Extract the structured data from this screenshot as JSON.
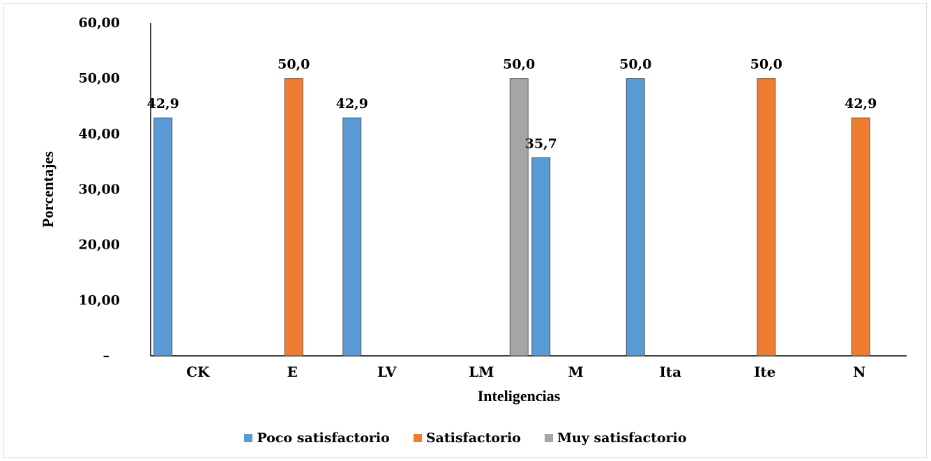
{
  "chart_data": {
    "type": "bar",
    "title": "",
    "xlabel": "Inteligencias",
    "ylabel": "Porcentajes",
    "ylim": [
      0,
      60
    ],
    "yticks": [
      "–",
      "10,00",
      "20,00",
      "30,00",
      "40,00",
      "50,00",
      "60,00"
    ],
    "ytick_values": [
      0,
      10,
      20,
      30,
      40,
      50,
      60
    ],
    "grid": false,
    "legend_position": "bottom",
    "categories": [
      "CK",
      "E",
      "LV",
      "LM",
      "M",
      "Ita",
      "Ite",
      "N"
    ],
    "series": [
      {
        "name": "Poco satisfactorio",
        "color": "#5b9bd5",
        "values": [
          42.9,
          null,
          42.9,
          null,
          35.7,
          50.0,
          null,
          null
        ],
        "labels": [
          "42,9",
          "",
          "42,9",
          "",
          "35,7",
          "50,0",
          "",
          ""
        ]
      },
      {
        "name": "Satisfactorio",
        "color": "#ed7d31",
        "values": [
          null,
          50.0,
          null,
          null,
          null,
          null,
          50.0,
          42.9
        ],
        "labels": [
          "",
          "50,0",
          "",
          "",
          "",
          "",
          "50,0",
          "42,9"
        ]
      },
      {
        "name": "Muy satisfactorio",
        "color": "#a5a5a5",
        "values": [
          null,
          null,
          null,
          50.0,
          null,
          null,
          null,
          null
        ],
        "labels": [
          "",
          "",
          "",
          "50,0",
          "",
          "",
          "",
          ""
        ]
      }
    ]
  }
}
